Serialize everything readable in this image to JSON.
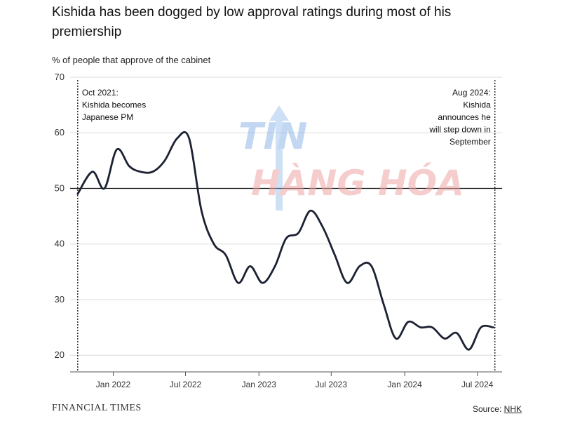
{
  "title": "Kishida has been dogged by low approval ratings during most of his premiership",
  "subtitle": "% of people that approve of the cabinet",
  "footer": {
    "brand": "FINANCIAL TIMES",
    "source_label": "Source: ",
    "source_name": "NHK"
  },
  "watermark": {
    "line1": "TIN",
    "line2": "HÀNG HÓA"
  },
  "colors": {
    "line": "#1c2133",
    "grid": "#dcdcdc",
    "reference": "#111111"
  },
  "chart_data": {
    "type": "line",
    "ylabel": "% of people that approve of the cabinet",
    "ylim": [
      17,
      70
    ],
    "yticks": [
      20,
      30,
      40,
      50,
      60,
      70
    ],
    "xlim": [
      "2021-09-15",
      "2024-09-01"
    ],
    "xticks": [
      {
        "date": "2022-01-01",
        "label": "Jan 2022"
      },
      {
        "date": "2022-07-01",
        "label": "Jul 2022"
      },
      {
        "date": "2023-01-01",
        "label": "Jan 2023"
      },
      {
        "date": "2023-07-01",
        "label": "Jul 2023"
      },
      {
        "date": "2024-01-01",
        "label": "Jan 2024"
      },
      {
        "date": "2024-07-01",
        "label": "Jul 2024"
      }
    ],
    "reference_line": 50,
    "grid": true,
    "series": [
      {
        "points": [
          [
            "2021-10-04",
            49
          ],
          [
            "2021-11-10",
            53
          ],
          [
            "2021-12-10",
            50
          ],
          [
            "2022-01-10",
            57
          ],
          [
            "2022-02-10",
            54
          ],
          [
            "2022-03-10",
            53
          ],
          [
            "2022-04-10",
            53
          ],
          [
            "2022-05-10",
            55
          ],
          [
            "2022-06-10",
            59
          ],
          [
            "2022-07-10",
            59
          ],
          [
            "2022-08-10",
            46
          ],
          [
            "2022-09-10",
            40
          ],
          [
            "2022-10-10",
            38
          ],
          [
            "2022-11-10",
            33
          ],
          [
            "2022-12-10",
            36
          ],
          [
            "2023-01-10",
            33
          ],
          [
            "2023-02-10",
            36
          ],
          [
            "2023-03-10",
            41
          ],
          [
            "2023-04-10",
            42
          ],
          [
            "2023-05-10",
            46
          ],
          [
            "2023-06-10",
            43
          ],
          [
            "2023-07-10",
            38
          ],
          [
            "2023-08-10",
            33
          ],
          [
            "2023-09-10",
            36
          ],
          [
            "2023-10-10",
            36
          ],
          [
            "2023-11-10",
            29
          ],
          [
            "2023-12-10",
            23
          ],
          [
            "2024-01-10",
            26
          ],
          [
            "2024-02-10",
            25
          ],
          [
            "2024-03-10",
            25
          ],
          [
            "2024-04-10",
            23
          ],
          [
            "2024-05-10",
            24
          ],
          [
            "2024-06-10",
            21
          ],
          [
            "2024-07-10",
            25
          ],
          [
            "2024-08-10",
            25
          ]
        ]
      }
    ],
    "annotations": [
      {
        "date": "2021-10-04",
        "align": "left",
        "lines": [
          "Oct 2021:",
          "Kishida becomes",
          "Japanese PM"
        ]
      },
      {
        "date": "2024-08-14",
        "align": "right",
        "lines": [
          "Aug 2024:",
          "Kishida",
          "announces he",
          "will step down in",
          "September"
        ]
      }
    ]
  }
}
